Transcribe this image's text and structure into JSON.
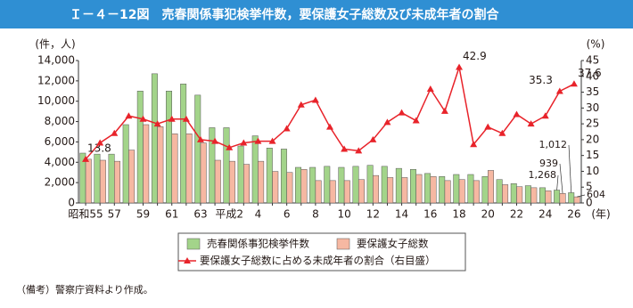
{
  "chart_data": {
    "type": "bar",
    "title": "Ｉ－４－12図　売春関係事犯検挙件数，要保護女子総数及び未成年者の割合",
    "ylabel": "(件，人)",
    "y2label": "(%)",
    "xlabel": "(年)",
    "note": "（備考）警察庁資料より作成。",
    "categories": [
      "昭和55",
      null,
      "57",
      null,
      "59",
      null,
      "61",
      null,
      "63",
      null,
      "平成2",
      null,
      "4",
      null,
      "6",
      null,
      "8",
      null,
      "10",
      null,
      "12",
      null,
      "14",
      null,
      "16",
      null,
      "18",
      null,
      "20",
      null,
      "22",
      null,
      "24",
      null,
      "26"
    ],
    "series": [
      {
        "name": "売春関係事犯検挙件数",
        "type": "bar",
        "color": "#a3d48a",
        "values": [
          4900,
          4800,
          4800,
          7700,
          11000,
          12700,
          11000,
          11700,
          10600,
          7400,
          7400,
          5600,
          6600,
          5400,
          5300,
          3500,
          3500,
          3600,
          3500,
          3600,
          3700,
          3600,
          3400,
          3300,
          2900,
          2600,
          2800,
          2800,
          2600,
          2300,
          1900,
          1700,
          1500,
          1268,
          1012
        ],
        "value_labels": [
          null,
          null,
          null,
          null,
          null,
          null,
          null,
          null,
          null,
          null,
          null,
          null,
          null,
          null,
          null,
          null,
          null,
          null,
          null,
          null,
          null,
          null,
          null,
          null,
          null,
          null,
          null,
          null,
          null,
          null,
          null,
          null,
          null,
          "1,268",
          "1,012"
        ]
      },
      {
        "name": "要保護女子総数",
        "type": "bar",
        "color": "#f6b8a2",
        "values": [
          4300,
          4200,
          4100,
          5200,
          7700,
          7500,
          6800,
          6800,
          5900,
          4200,
          4100,
          3800,
          4100,
          3100,
          3000,
          3300,
          2200,
          2200,
          2200,
          2300,
          2700,
          2500,
          2500,
          2800,
          2600,
          2200,
          2300,
          2200,
          3200,
          1800,
          1600,
          1500,
          1200,
          939,
          604
        ],
        "value_labels": [
          null,
          null,
          null,
          null,
          null,
          null,
          null,
          null,
          null,
          null,
          null,
          null,
          null,
          null,
          null,
          null,
          null,
          null,
          null,
          null,
          null,
          null,
          null,
          null,
          null,
          null,
          null,
          null,
          null,
          null,
          null,
          null,
          null,
          "939",
          "604"
        ]
      },
      {
        "name": "要保護女子総数に占める未成年者の割合（右目盛）",
        "type": "line",
        "axis": "y2",
        "color": "#e8232a",
        "values": [
          13.8,
          19,
          22,
          27.5,
          26.5,
          25,
          26.5,
          26.5,
          20,
          19.5,
          17.5,
          19,
          19.5,
          19.5,
          23.5,
          31,
          32.5,
          24,
          17,
          16.5,
          20,
          25.5,
          28.5,
          26,
          36,
          29,
          42.9,
          18.5,
          24,
          22,
          28,
          25,
          27.5,
          35.3,
          37.6
        ],
        "value_labels": [
          "13.8",
          null,
          null,
          null,
          null,
          null,
          null,
          null,
          null,
          null,
          null,
          null,
          null,
          null,
          null,
          null,
          null,
          null,
          null,
          null,
          null,
          null,
          null,
          null,
          null,
          null,
          "42.9",
          null,
          null,
          null,
          null,
          null,
          null,
          "35.3",
          "37.6"
        ]
      }
    ],
    "ylim": [
      0,
      14000
    ],
    "yticks": [
      0,
      {
        "value": 2000,
        "label": "2,000"
      },
      {
        "value": 4000,
        "label": "4,000"
      },
      {
        "value": 6000,
        "label": "6,000"
      },
      {
        "value": 8000,
        "label": "8,000"
      },
      {
        "value": 10000,
        "label": "10,000"
      },
      {
        "value": 12000,
        "label": "12,000"
      },
      {
        "value": 14000,
        "label": "14,000"
      }
    ],
    "y2lim": [
      0,
      45
    ],
    "y2ticks": [
      0,
      5,
      10,
      15,
      20,
      25,
      30,
      35,
      40,
      45
    ]
  }
}
